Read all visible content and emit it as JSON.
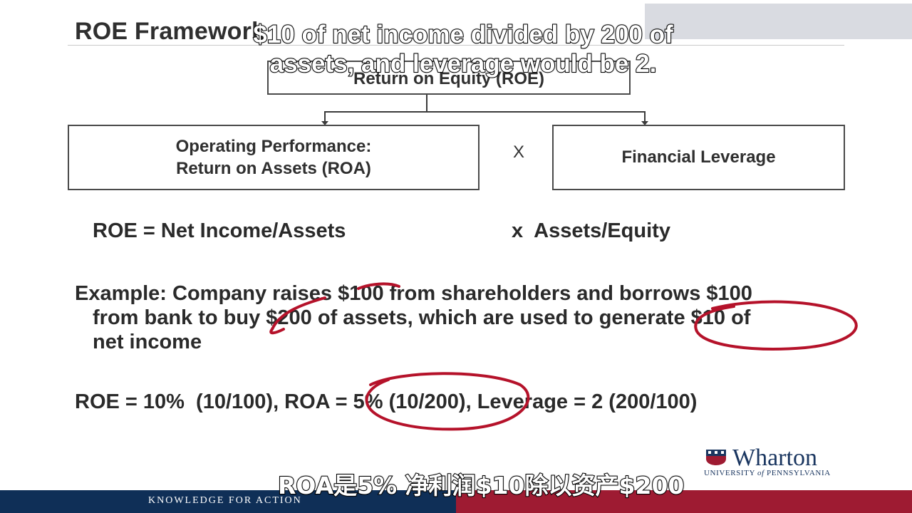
{
  "slide": {
    "title": "ROE Framework",
    "boxes": {
      "top": "Return on Equity (ROE)",
      "left_line1": "Operating Performance:",
      "left_line2": "Return on Assets (ROA)",
      "times": "X",
      "right": "Financial Leverage"
    },
    "formula": {
      "left": "ROE = Net Income/Assets",
      "right": "x  Assets/Equity"
    },
    "example": {
      "line1": "Example: Company raises $100 from shareholders and borrows $100",
      "line2": "from bank to buy $200 of assets, which are used to generate $10 of",
      "line3": "net income"
    },
    "calc": "ROE = 10%  (10/100), ROA = 5% (10/200), Leverage = 2 (200/100)"
  },
  "logo": {
    "name": "Wharton",
    "sub_prefix": "UNIVERSITY ",
    "sub_of": "of",
    "sub_suffix": " PENNSYLVANIA"
  },
  "footer": {
    "tagline": "KNOWLEDGE FOR ACTION"
  },
  "captions": {
    "english_line1": "$10 of net income divided by 200 of",
    "english_line2": "assets, and leverage would be 2.",
    "chinese": "ROA是5% 净利润$10除以资产$200"
  },
  "colors": {
    "navy": "#0f2f57",
    "crimson": "#9e1b32",
    "annotation_ink": "#b5122a"
  }
}
